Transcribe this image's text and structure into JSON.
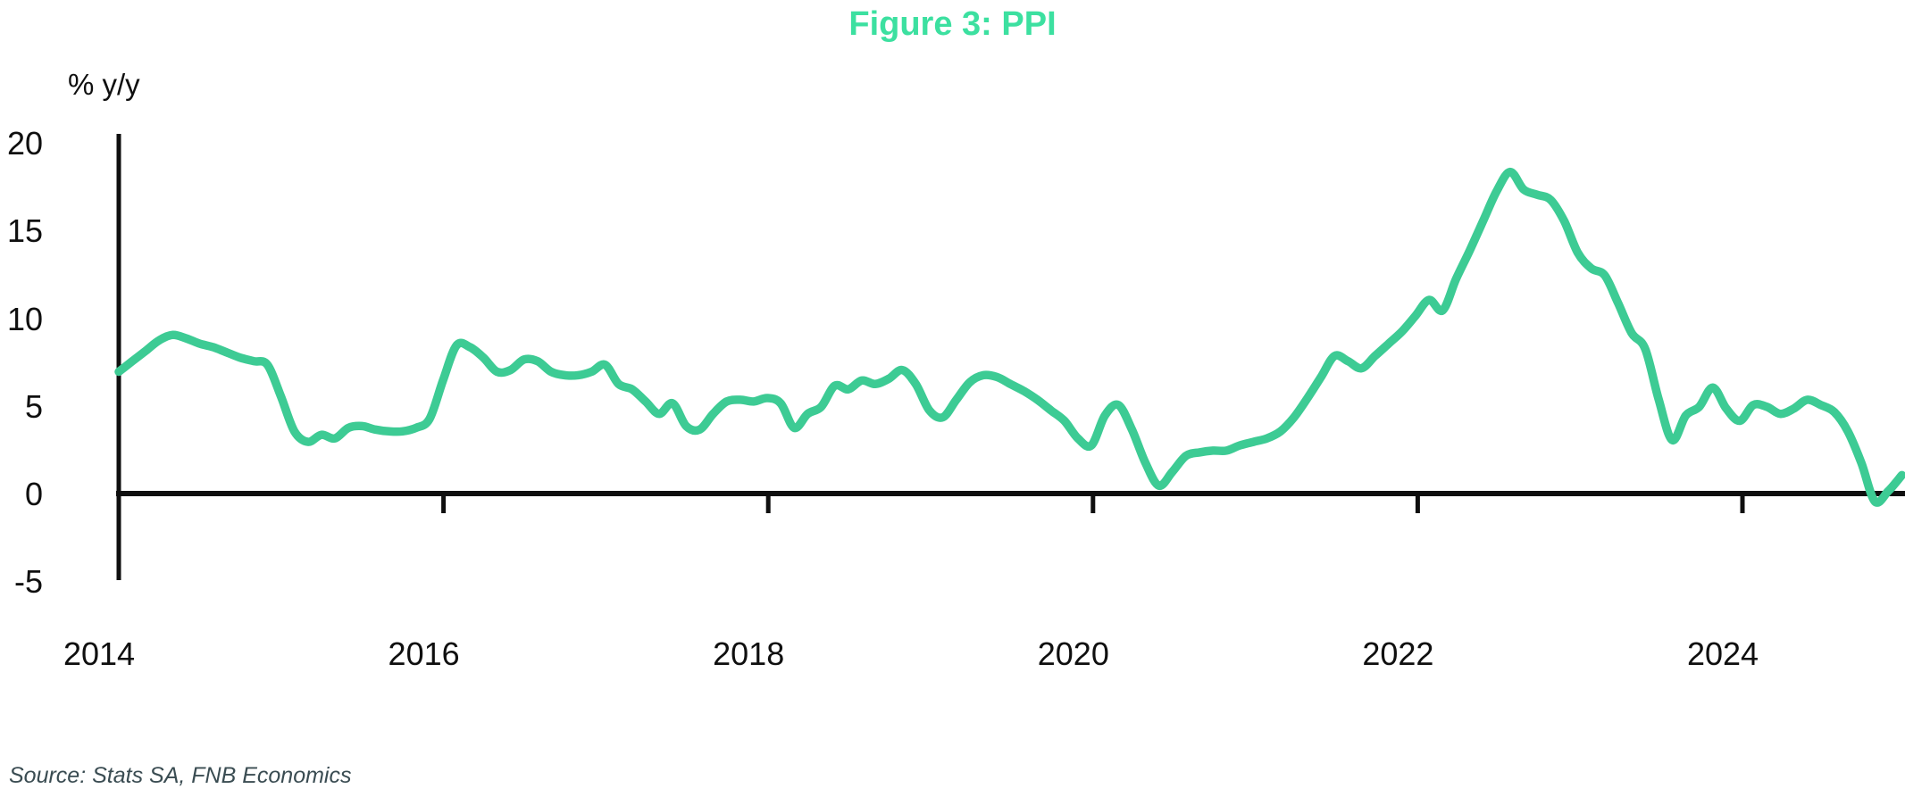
{
  "title": "Figure 3: PPI",
  "y_axis_unit": "% y/y",
  "source": "Source: Stats SA, FNB Economics",
  "colors": {
    "title": "#3CE0A0",
    "line": "#3DCB94",
    "axis": "#0f0f0f",
    "tick_text": "#0f0f0f",
    "source_text": "#3a4c52"
  },
  "axes": {
    "y_ticks": [
      "20",
      "15",
      "10",
      "5",
      "0",
      "-5"
    ],
    "x_ticks": [
      "2014",
      "2016",
      "2018",
      "2020",
      "2022",
      "2024"
    ]
  },
  "chart_data": {
    "type": "line",
    "title": "Figure 3: PPI",
    "xlabel": "",
    "ylabel": "% y/y",
    "ylim": [
      -5,
      20
    ],
    "y_tick_values": [
      20,
      15,
      10,
      5,
      0,
      -5
    ],
    "x_tick_labels": [
      2014,
      2016,
      2018,
      2020,
      2022,
      2024
    ],
    "grid": false,
    "legend": "none",
    "series": [
      {
        "name": "PPI (% y/y)",
        "color": "#3DCB94",
        "frequency": "monthly",
        "start": "2014-01",
        "end": "2025-01",
        "values": [
          7.0,
          7.6,
          8.2,
          8.8,
          9.1,
          8.9,
          8.6,
          8.4,
          8.1,
          7.8,
          7.6,
          7.4,
          5.6,
          3.6,
          3.0,
          3.4,
          3.2,
          3.8,
          3.9,
          3.7,
          3.6,
          3.6,
          3.8,
          4.3,
          6.5,
          8.5,
          8.4,
          7.8,
          7.0,
          7.1,
          7.7,
          7.6,
          7.0,
          6.8,
          6.8,
          7.0,
          7.4,
          6.3,
          6.0,
          5.3,
          4.6,
          5.2,
          3.9,
          3.7,
          4.6,
          5.3,
          5.4,
          5.3,
          5.5,
          5.2,
          3.8,
          4.6,
          5.0,
          6.2,
          6.0,
          6.5,
          6.3,
          6.6,
          7.1,
          6.3,
          4.8,
          4.4,
          5.4,
          6.4,
          6.8,
          6.7,
          6.3,
          5.9,
          5.4,
          4.8,
          4.2,
          3.2,
          2.8,
          4.5,
          5.1,
          3.7,
          1.8,
          0.5,
          1.3,
          2.2,
          2.4,
          2.5,
          2.5,
          2.8,
          3.0,
          3.2,
          3.6,
          4.4,
          5.5,
          6.7,
          7.9,
          7.6,
          7.2,
          7.9,
          8.6,
          9.3,
          10.2,
          11.1,
          10.5,
          12.3,
          13.9,
          15.6,
          17.3,
          18.4,
          17.4,
          17.1,
          16.8,
          15.6,
          13.8,
          12.9,
          12.5,
          10.9,
          9.2,
          8.3,
          5.4,
          3.1,
          4.5,
          5.0,
          6.1,
          4.9,
          4.2,
          5.1,
          5.0,
          4.6,
          4.9,
          5.4,
          5.1,
          4.7,
          3.6,
          1.8,
          -0.4,
          0.2,
          1.1
        ]
      }
    ]
  }
}
